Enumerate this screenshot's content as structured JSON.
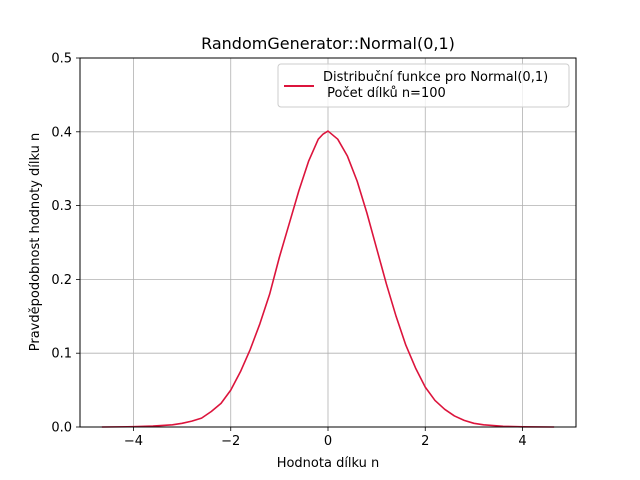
{
  "chart_data": {
    "type": "line",
    "title": "RandomGenerator::Normal(0,1)",
    "xlabel": "Hodnota dílku n",
    "ylabel": "Pravděpodobnost hodnoty dílku n",
    "xlim": [
      -5.1,
      5.1
    ],
    "ylim": [
      0,
      0.5
    ],
    "xticks": [
      -4,
      -2,
      0,
      2,
      4
    ],
    "xtick_labels": [
      "−4",
      "−2",
      "0",
      "2",
      "4"
    ],
    "yticks": [
      0.0,
      0.1,
      0.2,
      0.3,
      0.4,
      0.5
    ],
    "ytick_labels": [
      "0.0",
      "0.1",
      "0.2",
      "0.3",
      "0.4",
      "0.5"
    ],
    "grid": true,
    "legend_position": "top-right",
    "series": [
      {
        "name": "Distribuční funkce pro Normal(0,1)\n Počet dílků n=100",
        "color": "#dc143c",
        "x": [
          -4.65,
          -4.0,
          -3.6,
          -3.2,
          -3.0,
          -2.8,
          -2.6,
          -2.4,
          -2.2,
          -2.0,
          -1.8,
          -1.6,
          -1.4,
          -1.2,
          -1.0,
          -0.8,
          -0.6,
          -0.4,
          -0.2,
          -0.1,
          0.0,
          0.2,
          0.4,
          0.6,
          0.8,
          1.0,
          1.2,
          1.4,
          1.6,
          1.8,
          2.0,
          2.2,
          2.4,
          2.6,
          2.8,
          3.0,
          3.2,
          3.6,
          4.0,
          4.65
        ],
        "y": [
          0.0,
          0.0004,
          0.0012,
          0.003,
          0.005,
          0.008,
          0.012,
          0.021,
          0.032,
          0.05,
          0.075,
          0.105,
          0.14,
          0.18,
          0.23,
          0.275,
          0.32,
          0.36,
          0.39,
          0.397,
          0.401,
          0.39,
          0.367,
          0.333,
          0.29,
          0.242,
          0.194,
          0.15,
          0.111,
          0.08,
          0.054,
          0.036,
          0.024,
          0.015,
          0.009,
          0.005,
          0.003,
          0.001,
          0.0003,
          0.0
        ]
      }
    ]
  }
}
